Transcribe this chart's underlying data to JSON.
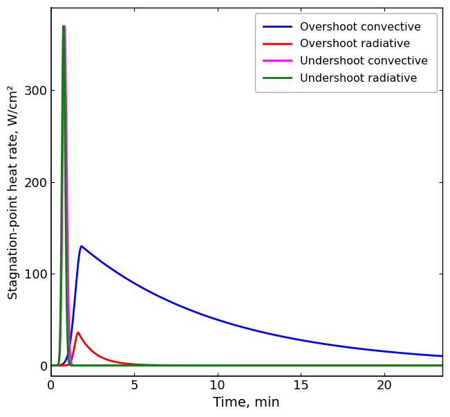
{
  "xlabel": "Time, min",
  "ylabel": "Stagnation-point heat rate, W/cm²",
  "xlim": [
    0,
    23.5
  ],
  "ylim": [
    -12,
    390
  ],
  "yticks": [
    0,
    100,
    200,
    300
  ],
  "xticks": [
    0,
    5,
    10,
    15,
    20
  ],
  "legend_entries": [
    "Overshoot convective",
    "Overshoot radiative",
    "Undershoot convective",
    "Undershoot radiative"
  ],
  "colors": {
    "overshoot_conv": "#0000FF",
    "overshoot_rad": "#FF0000",
    "undershoot_conv": "#FF00FF",
    "undershoot_rad": "#008800"
  },
  "line_width": 2.0,
  "figsize": [
    6.51,
    6.02
  ],
  "dpi": 100,
  "background_color": "#FFFFFF",
  "curves": {
    "overshoot_conv": {
      "peak": 130,
      "peak_time": 1.85,
      "rise_sigma": 0.38,
      "fall_tau": 8.5,
      "start": 0.5
    },
    "overshoot_rad": {
      "peak": 36,
      "peak_time": 1.65,
      "rise_sigma": 0.22,
      "fall_tau": 1.0,
      "start": 0.3
    },
    "undershoot_conv": {
      "peak": 370,
      "peak_time": 0.82,
      "rise_sigma": 0.11,
      "fall_sigma": 0.13,
      "start": 0.2
    },
    "undershoot_rad": {
      "peak": 370,
      "peak_time": 0.75,
      "rise_sigma": 0.09,
      "fall_sigma": 0.11,
      "start": 0.1
    }
  }
}
